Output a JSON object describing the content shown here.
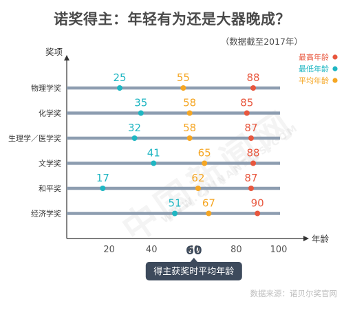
{
  "title": "诺奖得主：年轻有为还是大器晚成？",
  "subtitle": "（数据截至2017年）",
  "source": "数据来源：诺贝尔奖官网",
  "watermark": "中国新闻网",
  "watermark_en": "WWW.CHINANEWS.COM",
  "avg_marker": {
    "value": "60",
    "label": "得主获奖时平均年龄"
  },
  "colors": {
    "max": "#e8573e",
    "min": "#1fb6c2",
    "avg": "#f5a623",
    "track": "#8d9db0",
    "axis": "#333333",
    "callout": "#3d4a5c"
  },
  "chart_data": {
    "type": "scatter",
    "ylabel": "奖项",
    "xlabel": "年龄",
    "xlim": [
      0,
      100
    ],
    "xticks": [
      20,
      40,
      60,
      80,
      100
    ],
    "categories": [
      "物理学奖",
      "化学奖",
      "生理学／医学奖",
      "文学奖",
      "和平奖",
      "经济学奖"
    ],
    "legend_position": "top-right",
    "series": [
      {
        "name": "最高年龄",
        "key": "max",
        "values": [
          88,
          85,
          87,
          88,
          87,
          90
        ]
      },
      {
        "name": "最低年龄",
        "key": "min",
        "values": [
          25,
          35,
          32,
          41,
          17,
          51
        ]
      },
      {
        "name": "平均年龄",
        "key": "avg",
        "values": [
          55,
          58,
          58,
          65,
          62,
          67
        ]
      }
    ]
  }
}
